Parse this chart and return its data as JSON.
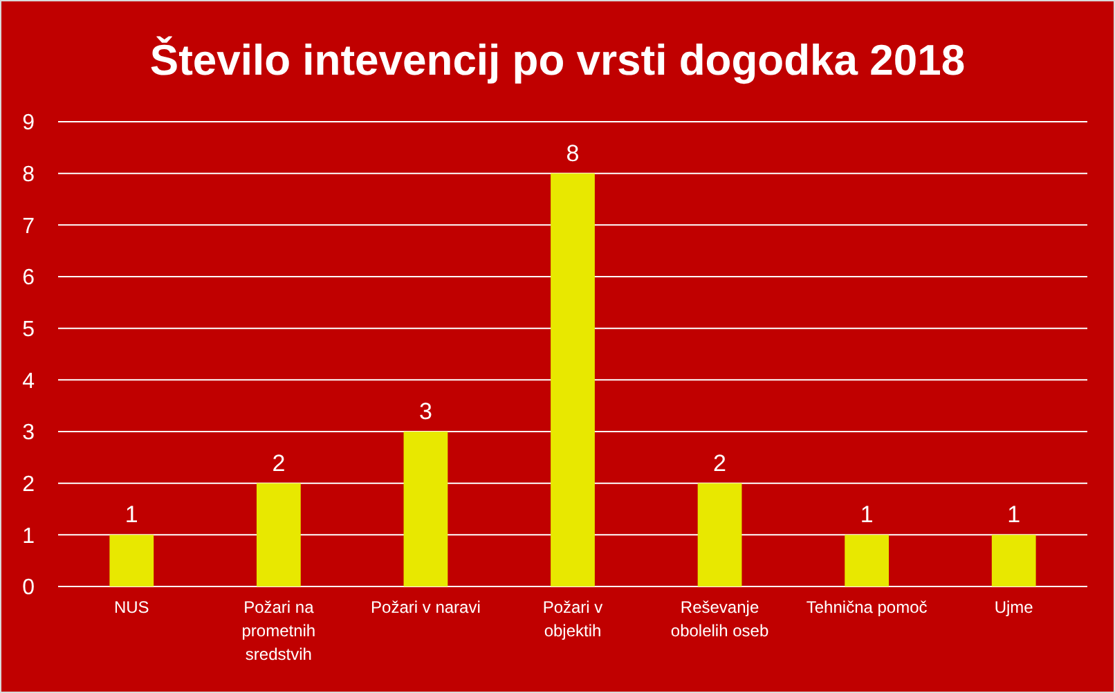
{
  "chart_data": {
    "type": "bar",
    "title": "Število intevencij po vrsti dogodka 2018",
    "categories": [
      "NUS",
      "Požari na prometnih sredstvih",
      "Požari v naravi",
      "Požari v objektih",
      "Reševanje obolelih oseb",
      "Tehnična pomoč",
      "Ujme"
    ],
    "values": [
      1,
      2,
      3,
      8,
      2,
      1,
      1
    ],
    "color": "#e8e800",
    "ylim": [
      0,
      9
    ],
    "yticks": [
      0,
      1,
      2,
      3,
      4,
      5,
      6,
      7,
      8,
      9
    ],
    "grid": "y",
    "data_labels": true
  }
}
